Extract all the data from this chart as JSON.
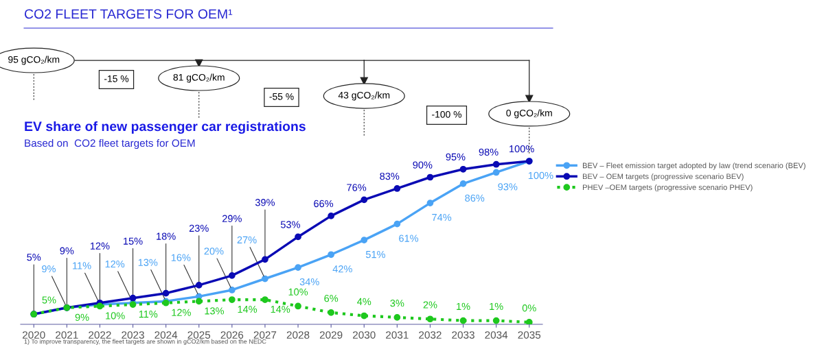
{
  "chart_data": {
    "type": "line",
    "title": "CO2 FLEET TARGETS FOR OEM¹",
    "subtitle": "EV share of new passenger car registrations",
    "categories": [
      "2020",
      "2021",
      "2022",
      "2023",
      "2024",
      "2025",
      "2026",
      "2027",
      "2028",
      "2029",
      "2030",
      "2031",
      "2032",
      "2033",
      "2034",
      "2035"
    ],
    "series": [
      {
        "name": "BEV – Fleet emission target adopted by law (trend scenario (BEV)",
        "color": "#4aa3f5",
        "line_style": "solid",
        "values": [
          5,
          9,
          11,
          12,
          13,
          16,
          20,
          27,
          34,
          42,
          51,
          61,
          74,
          86,
          93,
          100
        ],
        "value_labels": [
          null,
          "9%",
          "11%",
          "12%",
          "13%",
          "16%",
          "20%",
          "27%",
          "34%",
          "42%",
          "51%",
          "61%",
          "74%",
          "86%",
          "93%",
          "100%"
        ]
      },
      {
        "name": "BEV – OEM targets (progressive scenario BEV)",
        "color": "#0a0ab4",
        "line_style": "solid",
        "values": [
          5,
          9,
          12,
          15,
          18,
          23,
          29,
          39,
          53,
          66,
          76,
          83,
          90,
          95,
          98,
          100
        ],
        "value_labels": [
          "5%",
          "9%",
          "12%",
          "15%",
          "18%",
          "23%",
          "29%",
          "39%",
          "53%",
          "66%",
          "76%",
          "83%",
          "90%",
          "95%",
          "98%",
          "100%"
        ]
      },
      {
        "name": "PHEV –OEM targets (progressive scenario PHEV)",
        "color": "#1ec81e",
        "line_style": "dotted",
        "values": [
          5,
          9,
          10,
          11,
          12,
          13,
          14,
          14,
          10,
          6,
          4,
          3,
          2,
          1,
          1,
          0
        ],
        "value_labels": [
          "5%",
          "9%",
          "10%",
          "11%",
          "12%",
          "13%",
          "14%",
          "14%",
          "10%",
          "6%",
          "4%",
          "3%",
          "2%",
          "1%",
          "1%",
          "0%"
        ]
      }
    ],
    "marker": "circle",
    "legend": "right",
    "grid": false,
    "tick_labels": "x",
    "annotations": [
      {
        "text": "95 gCO₂/km",
        "x": "2020"
      },
      {
        "text": "81 gCO₂/km",
        "x": "2025"
      },
      {
        "text": "43 gCO₂/km",
        "x": "2030"
      },
      {
        "text": "0 gCO₂/km",
        "x": "2035"
      },
      "-15 %",
      "-55 %",
      "-100 %",
      "Based on  CO2 fleet targets for OEM",
      "1) To improve transparency, the fleet targets are shown in gCO2/km based on the NEDC"
    ]
  }
}
